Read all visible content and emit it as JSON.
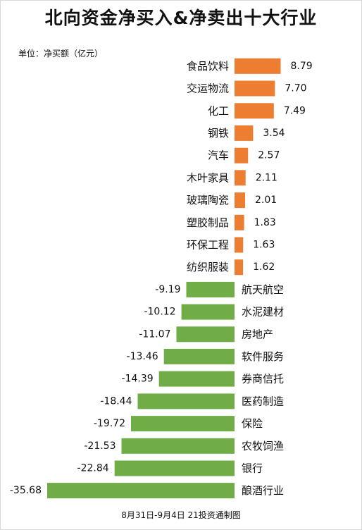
{
  "title": "北向资金净买入&净卖出十大行业",
  "unit_label": "单位：净买额（亿元）",
  "footer": "8月31日-9月4日 21投资通制图",
  "colors": {
    "positive": "#ED7D31",
    "negative": "#70AD47"
  },
  "chart_data": {
    "type": "bar",
    "orientation": "horizontal",
    "title": "北向资金净买入&净卖出十大行业",
    "xlabel": "",
    "ylabel": "",
    "unit": "单位：净买额（亿元）",
    "categories": [
      "食品饮料",
      "交运物流",
      "化工",
      "钢铁",
      "汽车",
      "木叶家具",
      "玻璃陶瓷",
      "塑胶制品",
      "环保工程",
      "纺织服装",
      "航天航空",
      "水泥建材",
      "房地产",
      "软件服务",
      "券商信托",
      "医药制造",
      "保险",
      "农牧饲渔",
      "银行",
      "酿酒行业"
    ],
    "values": [
      8.79,
      7.7,
      7.49,
      3.54,
      2.57,
      2.11,
      2.01,
      1.83,
      1.63,
      1.62,
      -9.19,
      -10.12,
      -11.07,
      -13.46,
      -14.39,
      -18.44,
      -19.72,
      -21.53,
      -22.84,
      -35.68
    ],
    "value_labels": [
      "8.79",
      "7.70",
      "7.49",
      "3.54",
      "2.57",
      "2.11",
      "2.01",
      "1.83",
      "1.63",
      "1.62",
      "-9.19",
      "-10.12",
      "-11.07",
      "-13.46",
      "-14.39",
      "-18.44",
      "-19.72",
      "-21.53",
      "-22.84",
      "-35.68"
    ],
    "xlim": [
      -35.68,
      8.79
    ],
    "grid": false,
    "legend": "none"
  }
}
